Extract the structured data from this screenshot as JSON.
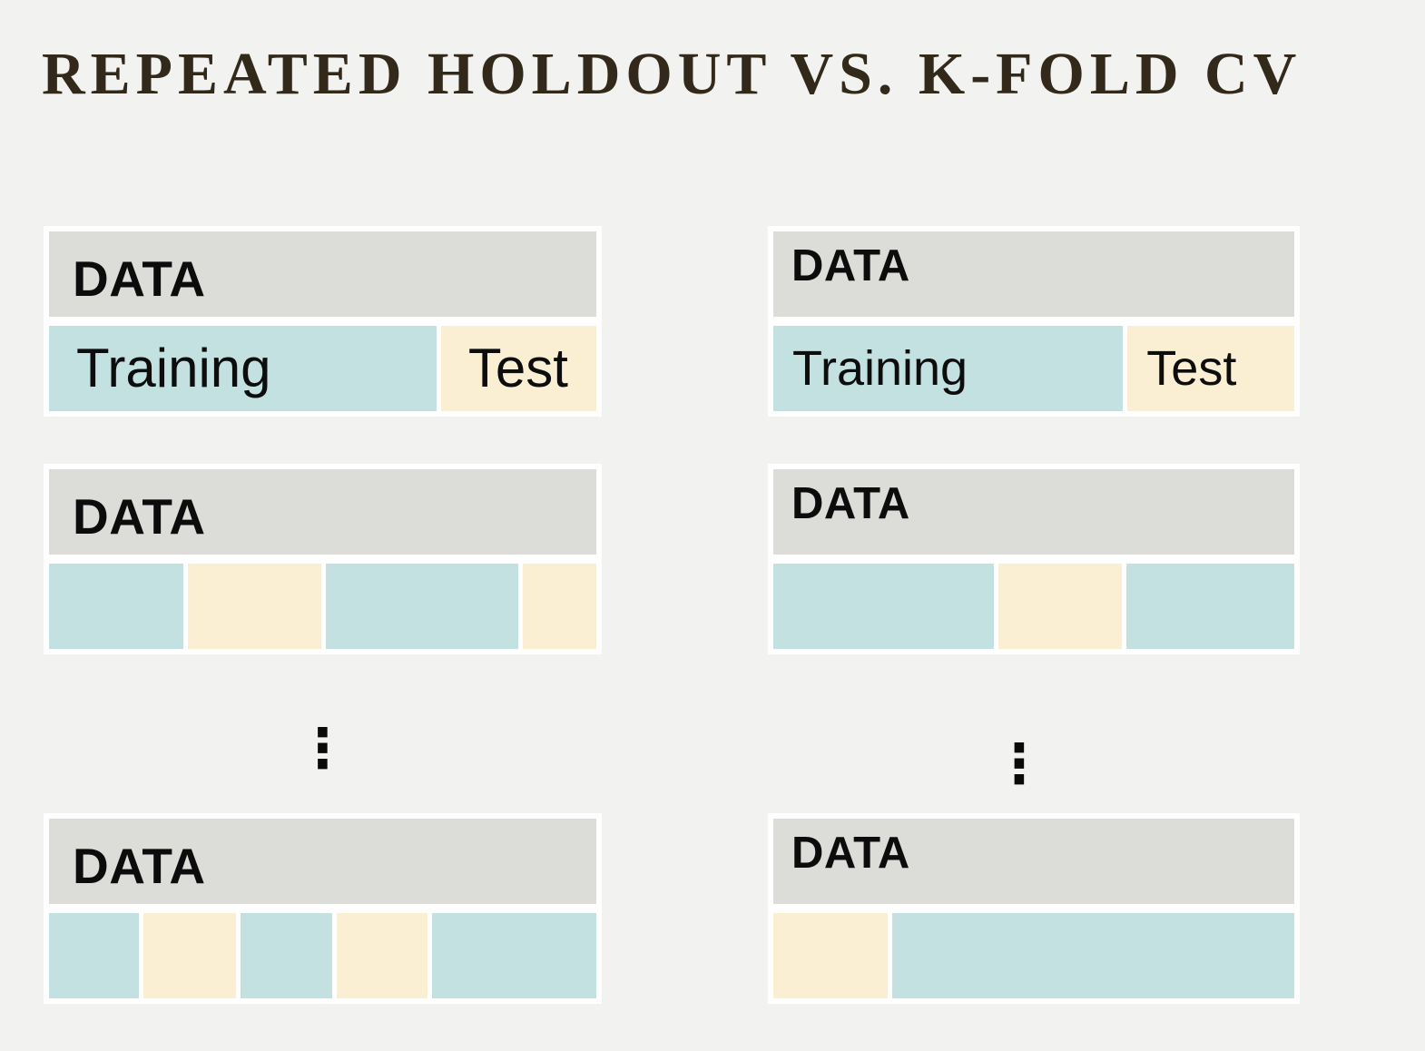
{
  "title": "REPEATED HOLDOUT VS. K-FOLD CV",
  "colors": {
    "background": "#f2f2f0",
    "header_gray": "#dcddd8",
    "training_teal": "#c3e1e1",
    "test_cream": "#faeed3",
    "title_brown": "#33291b"
  },
  "columns": [
    {
      "id": "repeated-holdout",
      "ellipsis": "⋮",
      "blocks": [
        {
          "header": "DATA",
          "segments": [
            {
              "kind": "training",
              "label": "Training",
              "weight": 429
            },
            {
              "kind": "test",
              "label": "Test",
              "weight": 172
            }
          ]
        },
        {
          "header": "DATA",
          "segments": [
            {
              "kind": "training",
              "weight": 149
            },
            {
              "kind": "test",
              "weight": 149
            },
            {
              "kind": "training",
              "weight": 214
            },
            {
              "kind": "test",
              "weight": 82
            }
          ]
        },
        {
          "header": "DATA",
          "segments": [
            {
              "kind": "training",
              "weight": 101
            },
            {
              "kind": "test",
              "weight": 103
            },
            {
              "kind": "training",
              "weight": 103
            },
            {
              "kind": "test",
              "weight": 102
            },
            {
              "kind": "training",
              "weight": 184
            }
          ]
        }
      ]
    },
    {
      "id": "kfold-cv",
      "ellipsis": "⋮",
      "blocks": [
        {
          "header": "DATA",
          "segments": [
            {
              "kind": "training",
              "label": "Training",
              "weight": 388
            },
            {
              "kind": "test",
              "label": "Test",
              "weight": 185
            }
          ]
        },
        {
          "header": "DATA",
          "segments": [
            {
              "kind": "training",
              "weight": 246
            },
            {
              "kind": "test",
              "weight": 138
            },
            {
              "kind": "training",
              "weight": 187
            }
          ]
        },
        {
          "header": "DATA",
          "segments": [
            {
              "kind": "test",
              "weight": 127
            },
            {
              "kind": "training",
              "weight": 446
            }
          ]
        }
      ]
    }
  ]
}
